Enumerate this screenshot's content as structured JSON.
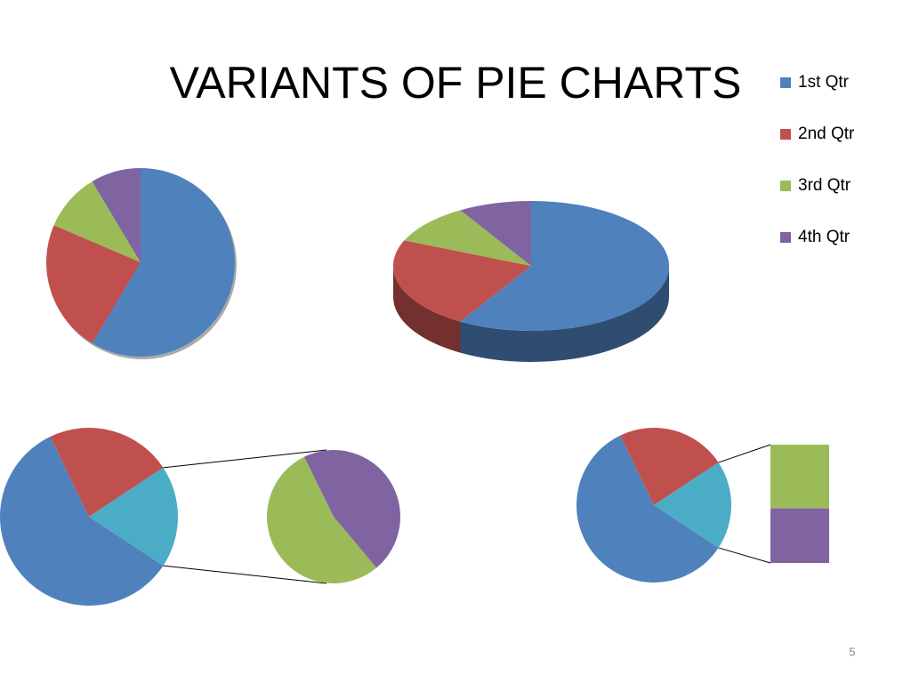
{
  "title": "VARIANTS OF PIE CHARTS",
  "slide_number": 5,
  "chart_data": [
    {
      "type": "pie",
      "categories": [
        "1st Qtr",
        "2nd Qtr",
        "3rd Qtr",
        "4th Qtr"
      ],
      "values": [
        8.2,
        3.2,
        1.4,
        1.2
      ],
      "colors": [
        "#4f81bd",
        "#c0504d",
        "#9bbb59",
        "#8064a2"
      ],
      "legend": "right"
    },
    {
      "type": "pie3d",
      "categories": [
        "1st Qtr",
        "2nd Qtr",
        "3rd Qtr",
        "4th Qtr"
      ],
      "values": [
        8.2,
        3.2,
        1.4,
        1.2
      ],
      "colors": [
        "#4f81bd",
        "#c0504d",
        "#9bbb59",
        "#8064a2"
      ]
    },
    {
      "type": "pie-of-pie",
      "categories": [
        "1st Qtr",
        "2nd Qtr",
        "3rd Qtr",
        "4th Qtr"
      ],
      "values": [
        8.2,
        3.2,
        1.4,
        1.2
      ],
      "colors": [
        "#4f81bd",
        "#c0504d",
        "#9bbb59",
        "#8064a2"
      ],
      "other_color": "#4bacc6"
    },
    {
      "type": "bar-of-pie",
      "categories": [
        "1st Qtr",
        "2nd Qtr",
        "3rd Qtr",
        "4th Qtr"
      ],
      "values": [
        8.2,
        3.2,
        1.4,
        1.2
      ],
      "colors": [
        "#4f81bd",
        "#c0504d",
        "#9bbb59",
        "#8064a2"
      ],
      "other_color": "#4bacc6"
    }
  ]
}
